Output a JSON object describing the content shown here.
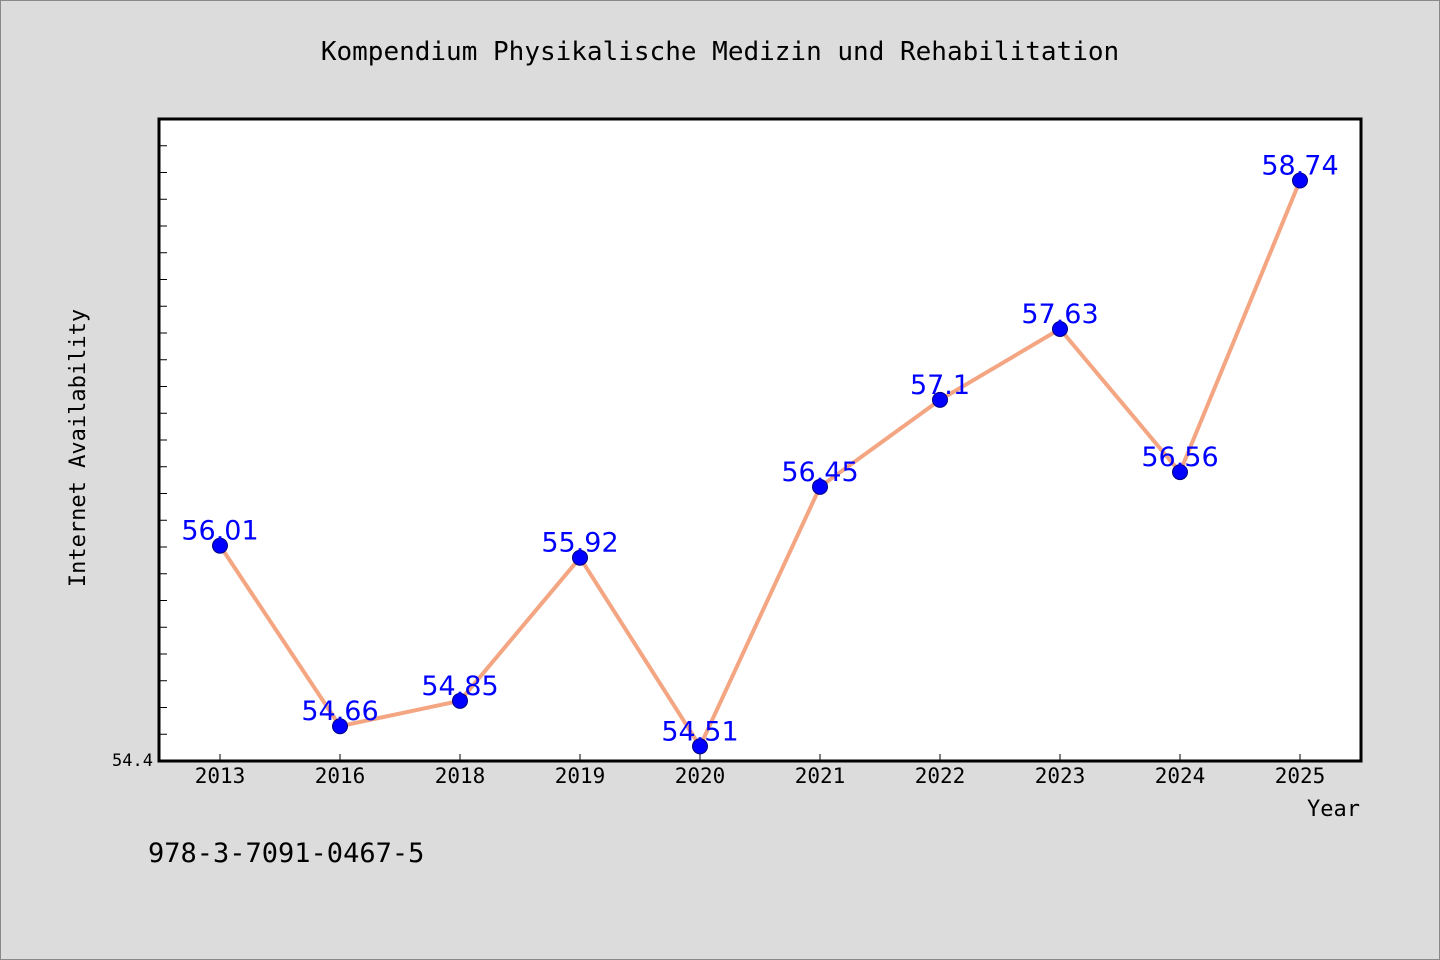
{
  "chart_data": {
    "type": "line",
    "title": "Kompendium Physikalische Medizin und Rehabilitation",
    "xlabel": "Year",
    "ylabel": "Internet Availability",
    "categories": [
      "2013",
      "2016",
      "2018",
      "2019",
      "2020",
      "2021",
      "2022",
      "2023",
      "2024",
      "2025"
    ],
    "values": [
      56.01,
      54.66,
      54.85,
      55.92,
      54.51,
      56.45,
      57.1,
      57.63,
      56.56,
      58.74
    ],
    "value_labels": [
      "56.01",
      "54.66",
      "54.85",
      "55.92",
      "54.51",
      "56.45",
      "57.1",
      "57.63",
      "56.56",
      "58.74"
    ],
    "ylim": [
      54.4,
      59.2
    ],
    "y_tick_label": "54.4",
    "grid": false,
    "legend": "none",
    "line_color": "#f4a582",
    "marker_color": "#0000ff",
    "label_color": "#0000ff"
  },
  "footer": {
    "isbn": "978-3-7091-0467-5"
  }
}
